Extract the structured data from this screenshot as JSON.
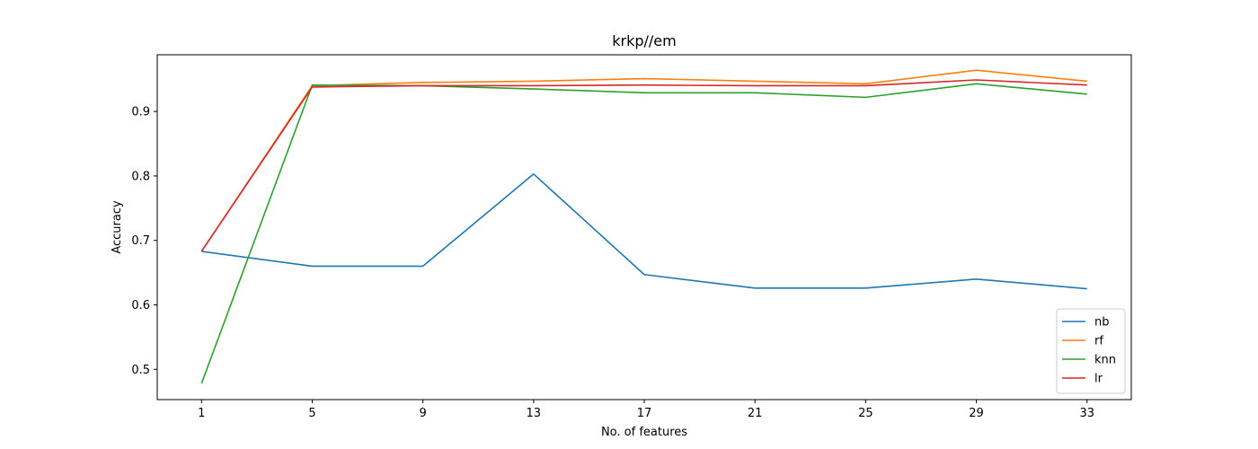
{
  "chart_data": {
    "type": "line",
    "title": "krkp//em",
    "xlabel": "No. of features",
    "ylabel": "Accuracy",
    "x": [
      1,
      5,
      9,
      13,
      17,
      21,
      25,
      29,
      33
    ],
    "xticks": [
      "1",
      "5",
      "9",
      "13",
      "17",
      "21",
      "25",
      "29",
      "33"
    ],
    "yticks": [
      "0.5",
      "0.6",
      "0.7",
      "0.8",
      "0.9"
    ],
    "xlim": [
      -0.6,
      34.6
    ],
    "ylim": [
      0.453,
      0.988
    ],
    "grid": false,
    "legend_position": "lower-right",
    "series": [
      {
        "name": "nb",
        "color": "#1f77b4",
        "values": [
          0.683,
          0.66,
          0.66,
          0.803,
          0.647,
          0.626,
          0.626,
          0.64,
          0.625
        ]
      },
      {
        "name": "rf",
        "color": "#ff7f0e",
        "values": [
          0.683,
          0.94,
          0.945,
          0.947,
          0.951,
          0.947,
          0.943,
          0.964,
          0.947
        ]
      },
      {
        "name": "knn",
        "color": "#2ca02c",
        "values": [
          0.478,
          0.941,
          0.94,
          0.935,
          0.929,
          0.929,
          0.922,
          0.943,
          0.927
        ]
      },
      {
        "name": "lr",
        "color": "#d62728",
        "values": [
          0.683,
          0.938,
          0.94,
          0.94,
          0.941,
          0.94,
          0.94,
          0.949,
          0.941
        ]
      }
    ]
  }
}
